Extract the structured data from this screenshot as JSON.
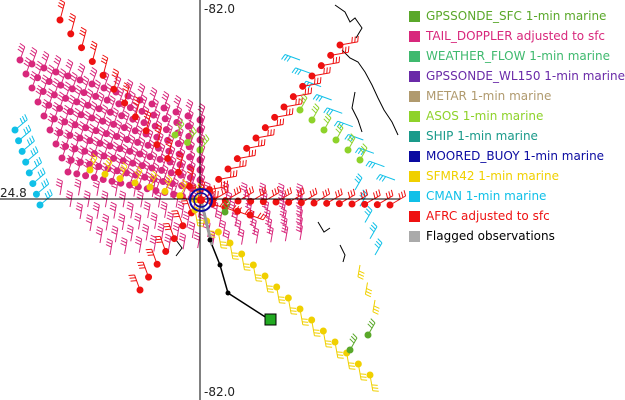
{
  "map": {
    "lon_label_top": "-82.0",
    "lon_label_bottom": "-82.0",
    "lat_label_left": "24.8",
    "colors": {
      "grid": "#000000",
      "coast": "#000000",
      "track": "#000000",
      "track_marker": "#22aa22"
    }
  },
  "legend": {
    "items": [
      {
        "label": "GPSSONDE_SFC 1-min marine",
        "color": "#5aa82a"
      },
      {
        "label": "TAIL_DOPPLER adjusted to sfc",
        "color": "#d8287c"
      },
      {
        "label": "WEATHER_FLOW 1-min marine",
        "color": "#3fb96e"
      },
      {
        "label": "GPSSONDE_WL150 1-min marine",
        "color": "#6a2aa8"
      },
      {
        "label": "METAR 1-min marine",
        "color": "#b09a6e"
      },
      {
        "label": "ASOS 1-min marine",
        "color": "#8ed22a"
      },
      {
        "label": "SHIP 1-min marine",
        "color": "#1a9a8a"
      },
      {
        "label": "MOORED_BUOY 1-min marine",
        "color": "#0a0aa0"
      },
      {
        "label": "SFMR42 1-min marine",
        "color": "#f0d000"
      },
      {
        "label": "CMAN 1-min marine",
        "color": "#10c0e8"
      },
      {
        "label": "AFRC adjusted to sfc",
        "color": "#ee1111"
      },
      {
        "label": "Flagged observations",
        "color": "#aaaaaa"
      }
    ]
  }
}
